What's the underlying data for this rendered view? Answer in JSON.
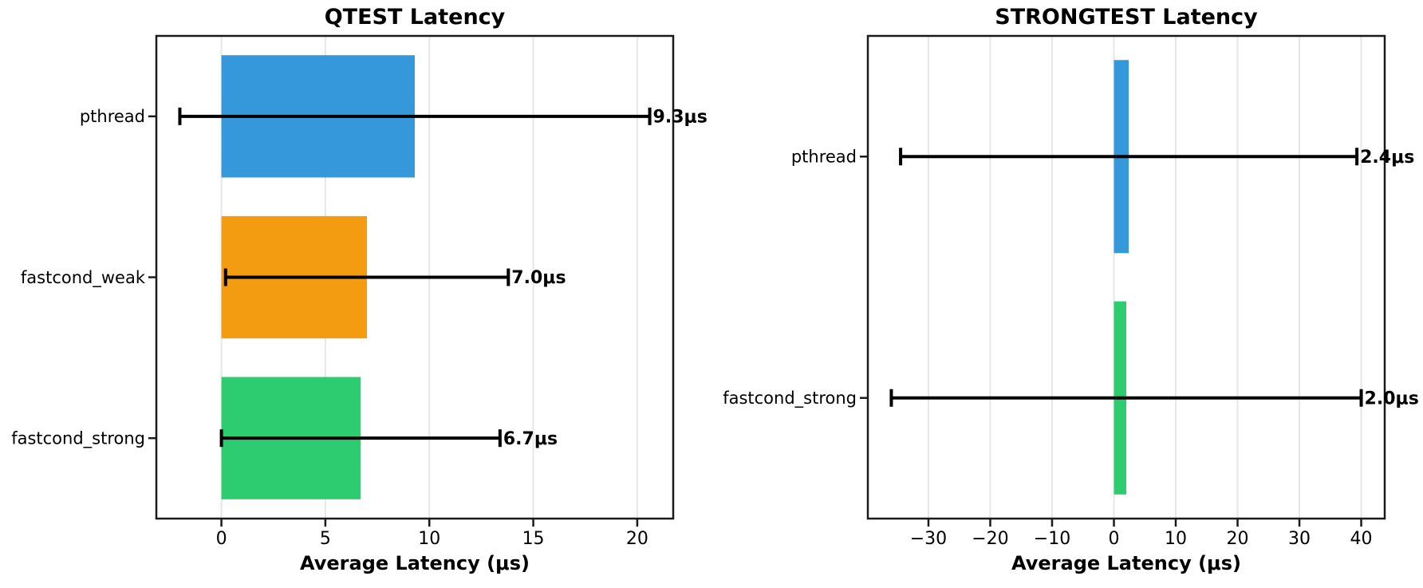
{
  "figure": {
    "background": "#ffffff",
    "grid_color": "#e7e7e7",
    "spine_color": "#1a1a1a",
    "errorbar_color": "#000000"
  },
  "chart_data": [
    {
      "type": "bar",
      "orientation": "horizontal",
      "title": "QTEST Latency",
      "xlabel": "Average Latency (μs)",
      "categories": [
        "pthread",
        "fastcond_weak",
        "fastcond_strong"
      ],
      "values": [
        9.3,
        7.0,
        6.7
      ],
      "errors": [
        11.3,
        6.8,
        6.7
      ],
      "value_labels": [
        "9.3μs",
        "7.0μs",
        "6.7μs"
      ],
      "bar_colors": [
        "#3498db",
        "#f39c12",
        "#2ecc71"
      ],
      "xticks": [
        0,
        5,
        10,
        15,
        20
      ],
      "xtick_labels": [
        "0",
        "5",
        "10",
        "15",
        "20"
      ],
      "xlim": [
        -3.13,
        21.73
      ],
      "grid": true,
      "legend": null,
      "bar_height_frac": 0.76
    },
    {
      "type": "bar",
      "orientation": "horizontal",
      "title": "STRONGTEST Latency",
      "xlabel": "Average Latency (μs)",
      "categories": [
        "pthread",
        "fastcond_strong"
      ],
      "values": [
        2.4,
        2.0
      ],
      "errors": [
        36.9,
        38.0
      ],
      "value_labels": [
        "2.4μs",
        "2.0μs"
      ],
      "bar_colors": [
        "#3498db",
        "#2ecc71"
      ],
      "xticks": [
        -30,
        -20,
        -10,
        0,
        10,
        20,
        30,
        40
      ],
      "xtick_labels": [
        "−30",
        "−20",
        "−10",
        "0",
        "10",
        "20",
        "30",
        "40"
      ],
      "xlim": [
        -39.8,
        43.8
      ],
      "grid": true,
      "legend": null,
      "bar_height_frac": 0.8
    }
  ]
}
